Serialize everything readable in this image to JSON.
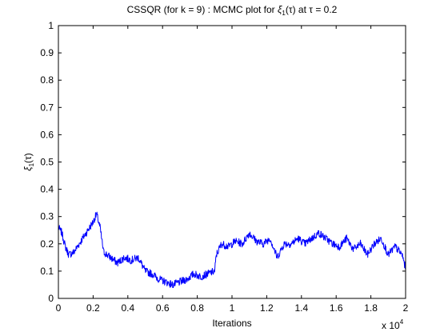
{
  "chart_data": {
    "type": "line",
    "title": "CSSQR (for k = 9) : MCMC plot for ξ_{1}(τ) at τ = 0.2",
    "title_parts": {
      "prefix": "CSSQR (for k = 9) : MCMC plot for ",
      "symbol": "ξ",
      "subscript": "1",
      "suffix": "(τ) at τ = 0.2"
    },
    "xlabel": "Iterations",
    "ylabel_parts": {
      "symbol": "ξ",
      "subscript": "1",
      "suffix": "(τ)"
    },
    "x_multiplier": {
      "base": "x 10",
      "exponent": "4"
    },
    "xlim": [
      0,
      20000
    ],
    "ylim": [
      0,
      1
    ],
    "xticks": [
      0,
      2000,
      4000,
      6000,
      8000,
      10000,
      12000,
      14000,
      16000,
      18000,
      20000
    ],
    "xtick_labels": [
      "0",
      "0.2",
      "0.4",
      "0.6",
      "0.8",
      "1",
      "1.2",
      "1.4",
      "1.6",
      "1.8",
      "2"
    ],
    "yticks": [
      0,
      0.1,
      0.2,
      0.3,
      0.4,
      0.5,
      0.6,
      0.7,
      0.8,
      0.9,
      1
    ],
    "ytick_labels": [
      "0",
      "0.1",
      "0.2",
      "0.3",
      "0.4",
      "0.5",
      "0.6",
      "0.7",
      "0.8",
      "0.9",
      "1"
    ],
    "grid": false,
    "series": [
      {
        "color": "#0000ff",
        "x": [
          0,
          200,
          400,
          600,
          900,
          1200,
          1600,
          2000,
          2200,
          2400,
          2600,
          3000,
          3400,
          3800,
          4200,
          4600,
          5000,
          5400,
          5800,
          6200,
          6600,
          7000,
          7400,
          7800,
          8200,
          8600,
          9000,
          9100,
          9400,
          9800,
          10200,
          10600,
          11000,
          11400,
          11800,
          12200,
          12600,
          13000,
          13400,
          13800,
          14200,
          14600,
          15000,
          15400,
          15800,
          16200,
          16600,
          17000,
          17400,
          17800,
          18200,
          18600,
          19000,
          19400,
          19800,
          20000
        ],
        "y": [
          0.26,
          0.24,
          0.19,
          0.16,
          0.17,
          0.2,
          0.24,
          0.28,
          0.31,
          0.26,
          0.17,
          0.15,
          0.13,
          0.15,
          0.14,
          0.15,
          0.1,
          0.09,
          0.07,
          0.06,
          0.05,
          0.06,
          0.07,
          0.09,
          0.08,
          0.09,
          0.1,
          0.16,
          0.2,
          0.19,
          0.21,
          0.2,
          0.24,
          0.21,
          0.2,
          0.22,
          0.15,
          0.2,
          0.2,
          0.22,
          0.2,
          0.22,
          0.24,
          0.22,
          0.2,
          0.19,
          0.22,
          0.18,
          0.2,
          0.16,
          0.2,
          0.22,
          0.16,
          0.19,
          0.16,
          0.11
        ]
      }
    ]
  }
}
